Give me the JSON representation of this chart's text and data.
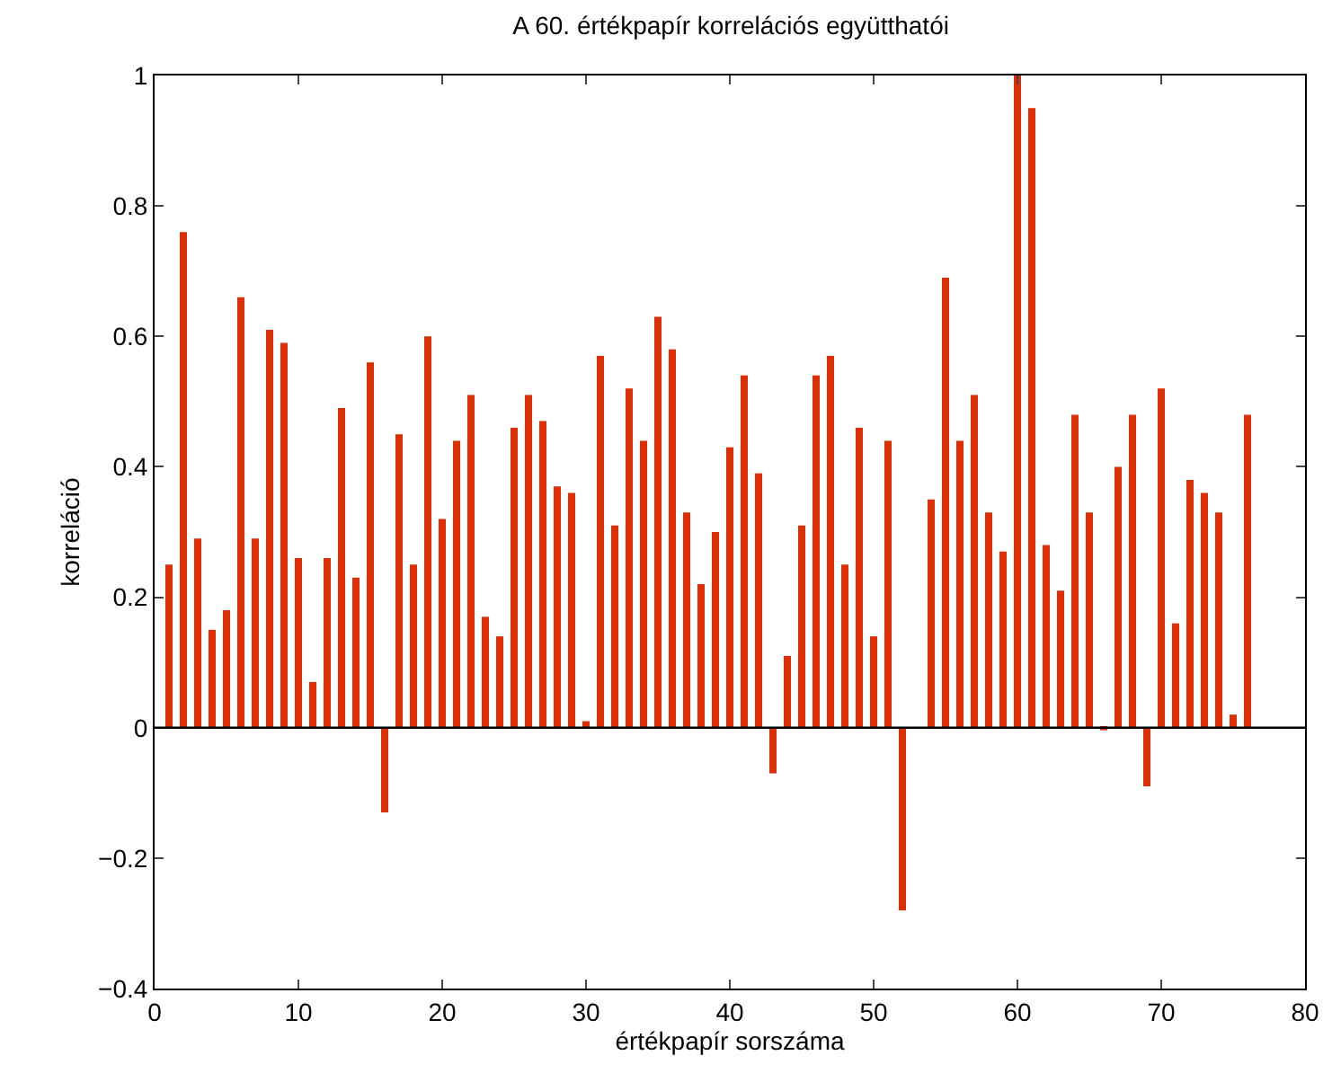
{
  "chart_data": {
    "type": "bar",
    "title": "A 60. értékpapír korrelációs együtthatói",
    "xlabel": "értékpapír sorszáma",
    "ylabel": "korreláció",
    "x": [
      1,
      2,
      3,
      4,
      5,
      6,
      7,
      8,
      9,
      10,
      11,
      12,
      13,
      14,
      15,
      16,
      17,
      18,
      19,
      20,
      21,
      22,
      23,
      24,
      25,
      26,
      27,
      28,
      29,
      30,
      31,
      32,
      33,
      34,
      35,
      36,
      37,
      38,
      39,
      40,
      41,
      42,
      43,
      44,
      45,
      46,
      47,
      48,
      49,
      50,
      51,
      52,
      53,
      54,
      55,
      56,
      57,
      58,
      59,
      60,
      61,
      62,
      63,
      64,
      65,
      66,
      67,
      68,
      69,
      70,
      71,
      72,
      73,
      74,
      75,
      76
    ],
    "values": [
      0.25,
      0.76,
      0.29,
      0.15,
      0.18,
      0.66,
      0.29,
      0.61,
      0.59,
      0.26,
      0.07,
      0.26,
      0.49,
      0.23,
      0.56,
      -0.13,
      0.45,
      0.25,
      0.6,
      0.32,
      0.44,
      0.51,
      0.17,
      0.14,
      0.46,
      0.51,
      0.47,
      0.37,
      0.36,
      0.01,
      0.57,
      0.31,
      0.52,
      0.44,
      0.63,
      0.58,
      0.33,
      0.22,
      0.3,
      0.43,
      0.54,
      0.39,
      -0.07,
      0.11,
      0.31,
      0.54,
      0.57,
      0.25,
      0.46,
      0.14,
      0.44,
      -0.28,
      0,
      0.35,
      0.69,
      0.44,
      0.51,
      0.33,
      0.27,
      1.0,
      0.95,
      0.28,
      0.21,
      0.48,
      0.33,
      -0.004,
      0.4,
      0.48,
      -0.09,
      0.52,
      0.16,
      0.38,
      0.36,
      0.33,
      0.02,
      0.48
    ],
    "color": "#dd2e05",
    "xlim": [
      0,
      80
    ],
    "xticks": [
      0,
      10,
      20,
      30,
      40,
      50,
      60,
      70,
      80
    ],
    "ylim": [
      -0.4,
      1
    ],
    "yticks": [
      {
        "value": -0.4,
        "label": "−0.4"
      },
      {
        "value": -0.2,
        "label": "−0.2"
      },
      0,
      0.2,
      0.4,
      0.6,
      0.8,
      1
    ],
    "ref_lines": [
      {
        "axis": "y",
        "value": 0,
        "color": "#000000"
      }
    ]
  }
}
